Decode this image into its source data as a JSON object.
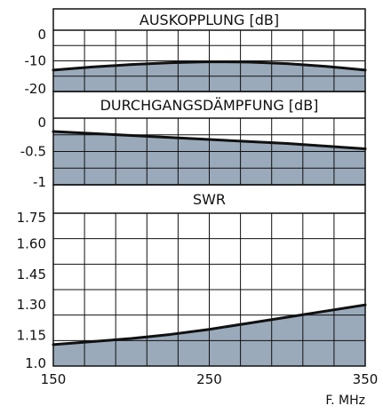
{
  "chart_data": {
    "type": "area",
    "x_unit_label": "F. MHz",
    "x_range": [
      150,
      350
    ],
    "x_ticks": [
      150,
      250,
      350
    ],
    "x_tick_labels": [
      "150",
      "250",
      "350"
    ],
    "fill_color": "#9aaabb",
    "line_color": "#111111",
    "grid": true,
    "panels": [
      {
        "title": "AUSKOPPLUNG [dB]",
        "ylim": [
          -20,
          0
        ],
        "y_ticks": [
          0,
          -10,
          -20
        ],
        "y_tick_labels": [
          "0",
          "-10",
          "-20"
        ],
        "series": [
          {
            "x": [
              150,
              175,
              200,
              225,
              250,
              275,
              300,
              325,
              350
            ],
            "y": [
              -13.0,
              -12.0,
              -11.2,
              -10.6,
              -10.3,
              -10.4,
              -10.9,
              -11.8,
              -13.0
            ]
          }
        ]
      },
      {
        "title": "DURCHGANGSDÄMPFUNG [dB]",
        "ylim": [
          -1,
          0
        ],
        "y_ticks": [
          0,
          -0.5,
          -1
        ],
        "y_tick_labels": [
          "0",
          "-0.5",
          "-1"
        ],
        "series": [
          {
            "x": [
              150,
              200,
              250,
              300,
              350
            ],
            "y": [
              -0.2,
              -0.26,
              -0.32,
              -0.38,
              -0.46
            ]
          }
        ]
      },
      {
        "title": "SWR",
        "ylim": [
          1.0,
          1.75
        ],
        "y_ticks": [
          1.75,
          1.6,
          1.45,
          1.3,
          1.15,
          1.0
        ],
        "y_tick_labels": [
          "1.75",
          "1.60",
          "1.45",
          "1.30",
          "1.15",
          "1.0"
        ],
        "series": [
          {
            "x": [
              150,
              175,
              200,
              225,
              250,
              275,
              300,
              325,
              350
            ],
            "y": [
              1.105,
              1.12,
              1.135,
              1.155,
              1.18,
              1.21,
              1.24,
              1.27,
              1.3
            ]
          }
        ]
      }
    ]
  }
}
